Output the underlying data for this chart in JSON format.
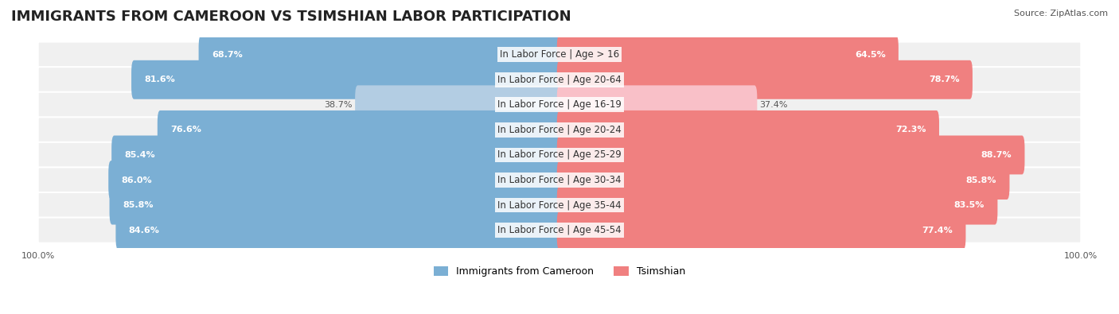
{
  "title": "IMMIGRANTS FROM CAMEROON VS TSIMSHIAN LABOR PARTICIPATION",
  "source": "Source: ZipAtlas.com",
  "categories": [
    "In Labor Force | Age > 16",
    "In Labor Force | Age 20-64",
    "In Labor Force | Age 16-19",
    "In Labor Force | Age 20-24",
    "In Labor Force | Age 25-29",
    "In Labor Force | Age 30-34",
    "In Labor Force | Age 35-44",
    "In Labor Force | Age 45-54"
  ],
  "cameroon_values": [
    68.7,
    81.6,
    38.7,
    76.6,
    85.4,
    86.0,
    85.8,
    84.6
  ],
  "tsimshian_values": [
    64.5,
    78.7,
    37.4,
    72.3,
    88.7,
    85.8,
    83.5,
    77.4
  ],
  "cameroon_color": "#7BAfd4",
  "cameroon_color_light": "#B3CDE3",
  "tsimshian_color": "#F08080",
  "tsimshian_color_light": "#F9C0C8",
  "row_bg_color": "#F0F0F0",
  "bar_height": 0.55,
  "max_value": 100.0,
  "legend_cameroon": "Immigrants from Cameroon",
  "legend_tsimshian": "Tsimshian",
  "title_fontsize": 13,
  "label_fontsize": 8.5,
  "value_fontsize": 8,
  "source_fontsize": 8,
  "legend_fontsize": 9
}
